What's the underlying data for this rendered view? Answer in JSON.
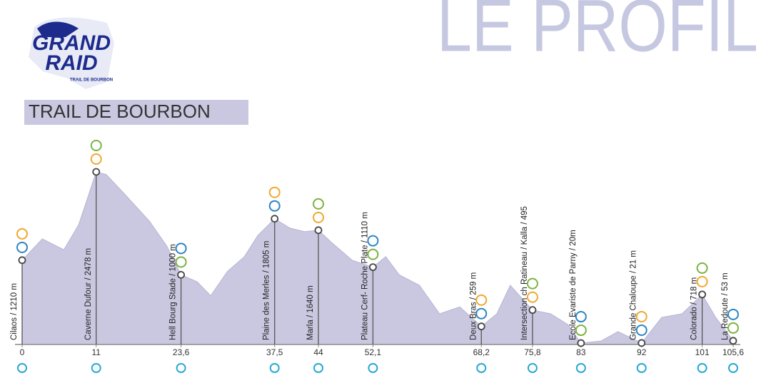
{
  "logo": {
    "line1": "GRAND",
    "line2": "RAID",
    "subtitle": "TRAIL DE BOURBON"
  },
  "chart_data": {
    "type": "area",
    "title": "LE PROFIL",
    "subtitle": "TRAIL DE BOURBON",
    "color": "#cac8e0",
    "x": [
      0,
      3,
      6.2,
      8.4,
      11,
      12.5,
      15.5,
      18.9,
      21.5,
      23.6,
      26,
      28,
      30.5,
      33,
      35,
      37.5,
      39.8,
      42,
      44,
      46,
      49,
      52.1,
      54,
      56,
      59,
      62,
      65,
      68.2,
      70.5,
      72.5,
      75.8,
      78.5,
      81,
      83,
      86,
      88.5,
      92,
      95,
      98,
      101,
      103,
      105.6
    ],
    "values": [
      1210,
      1515,
      1360,
      1720,
      2478,
      2440,
      2130,
      1770,
      1410,
      1000,
      900,
      700,
      1050,
      1260,
      1565,
      1805,
      1670,
      1620,
      1640,
      1460,
      1210,
      1110,
      1260,
      1000,
      850,
      440,
      540,
      259,
      440,
      850,
      495,
      440,
      290,
      20,
      50,
      185,
      21,
      390,
      440,
      718,
      390,
      53
    ],
    "xlim": [
      0,
      105.6
    ],
    "ylim": [
      0,
      3000
    ],
    "xticks": [
      0,
      11,
      {
        "value": 23.6,
        "label": "23,6"
      },
      {
        "value": 37.5,
        "label": "37,5"
      },
      44,
      {
        "value": 52.1,
        "label": "52,1"
      },
      {
        "value": 68.2,
        "label": "68,2"
      },
      {
        "value": 75.8,
        "label": "75,8"
      },
      83,
      92,
      101,
      {
        "value": 105.6,
        "label": "105,6"
      }
    ],
    "annotations": [
      {
        "label": "Cilaos / 1210 m",
        "x": 0,
        "y": 1210
      },
      {
        "label": "Caverne Dufour / 2478 m",
        "x": 11,
        "y": 2478
      },
      {
        "label": "Hell Bourg Stade / 1000 m",
        "x": 23.6,
        "y": 1000
      },
      {
        "label": "Plaine des Merles / 1805 m",
        "x": 37.5,
        "y": 1805
      },
      {
        "label": "Marla / 1640 m",
        "x": 44,
        "y": 1640
      },
      {
        "label": "Plateau Cerf- Roche Plate / 1110 m",
        "x": 52.1,
        "y": 1110
      },
      {
        "label": "Deux Bras / 259 m",
        "x": 68.2,
        "y": 259
      },
      {
        "label": "Intersection ch Ratineau / Kalla / 495",
        "x": 75.8,
        "y": 495
      },
      {
        "label": "Ecole Evariste de Parny / 20m",
        "x": 83,
        "y": 20
      },
      {
        "label": "Grande Chaloupe / 21 m",
        "x": 92,
        "y": 21
      },
      {
        "label": "Colorado / 718 m",
        "x": 101,
        "y": 718
      },
      {
        "label": "La Redoute / 53 m",
        "x": 105.6,
        "y": 53
      }
    ]
  }
}
